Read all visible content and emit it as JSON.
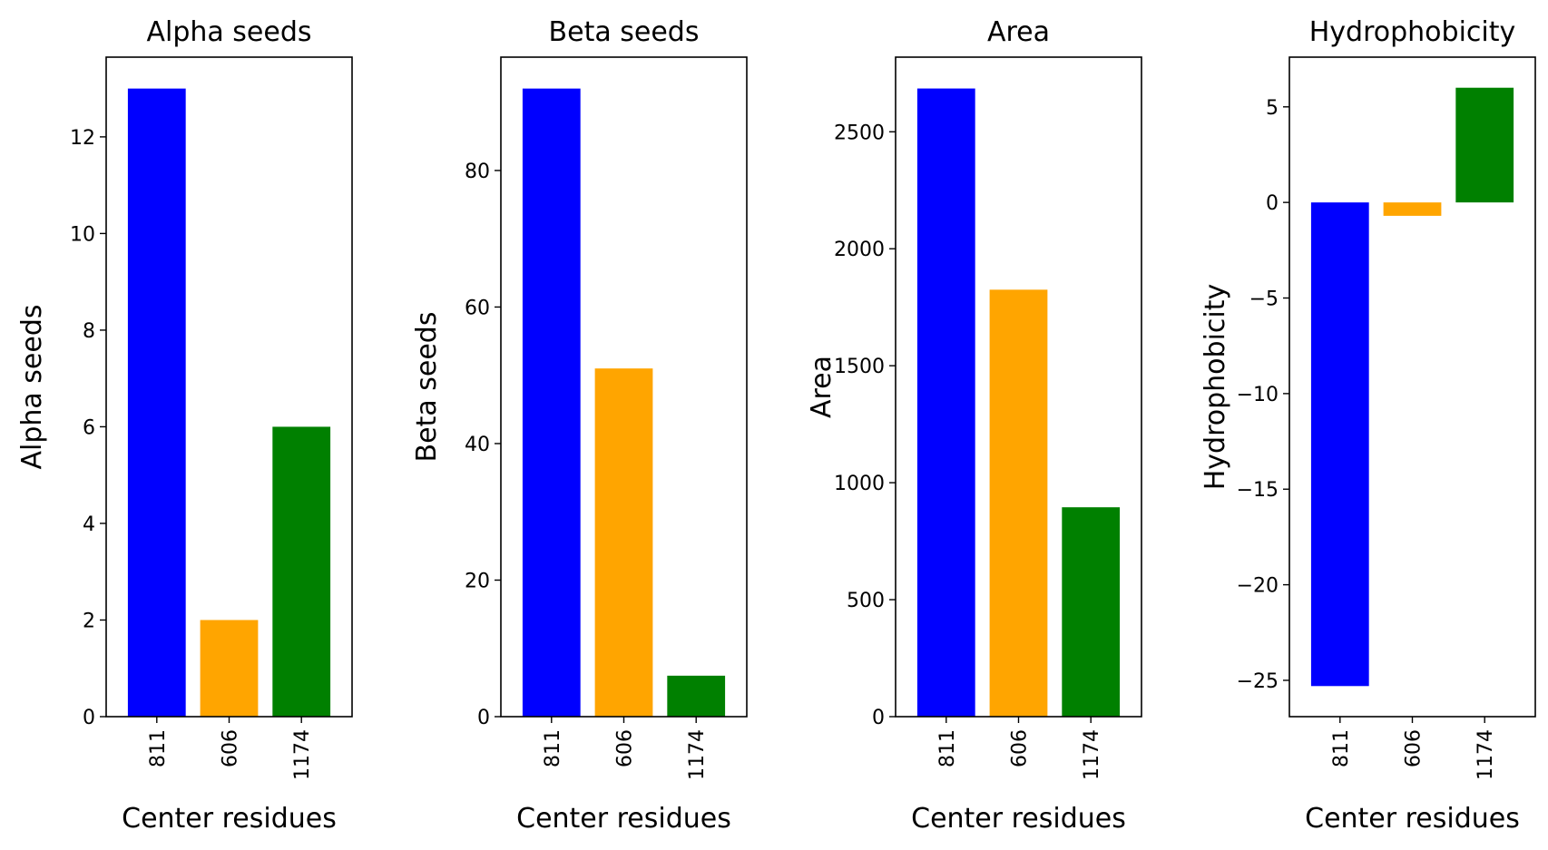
{
  "chart_data": [
    {
      "type": "bar",
      "title": "Alpha seeds",
      "xlabel": "Center residues",
      "ylabel": "Alpha seeds",
      "categories": [
        "811",
        "606",
        "1174"
      ],
      "values": [
        13,
        2,
        6
      ],
      "colors": [
        "#0000ff",
        "#ffa500",
        "#008000"
      ],
      "ylim": [
        0,
        13.65
      ],
      "yticks": [
        0,
        2,
        4,
        6,
        8,
        10,
        12
      ],
      "ytick_labels": [
        "0",
        "2",
        "4",
        "6",
        "8",
        "10",
        "12"
      ]
    },
    {
      "type": "bar",
      "title": "Beta seeds",
      "xlabel": "Center residues",
      "ylabel": "Beta seeds",
      "categories": [
        "811",
        "606",
        "1174"
      ],
      "values": [
        92,
        51,
        6
      ],
      "colors": [
        "#0000ff",
        "#ffa500",
        "#008000"
      ],
      "ylim": [
        0,
        96.6
      ],
      "yticks": [
        0,
        20,
        40,
        60,
        80
      ],
      "ytick_labels": [
        "0",
        "20",
        "40",
        "60",
        "80"
      ]
    },
    {
      "type": "bar",
      "title": "Area",
      "xlabel": "Center residues",
      "ylabel": "Area",
      "categories": [
        "811",
        "606",
        "1174"
      ],
      "values": [
        2685,
        1825,
        895
      ],
      "colors": [
        "#0000ff",
        "#ffa500",
        "#008000"
      ],
      "ylim": [
        0,
        2819
      ],
      "yticks": [
        0,
        500,
        1000,
        1500,
        2000,
        2500
      ],
      "ytick_labels": [
        "0",
        "500",
        "1000",
        "1500",
        "2000",
        "2500"
      ]
    },
    {
      "type": "bar",
      "title": "Hydrophobicity",
      "xlabel": "Center residues",
      "ylabel": "Hydrophobicity",
      "categories": [
        "811",
        "606",
        "1174"
      ],
      "values": [
        -25.3,
        -0.7,
        6.0
      ],
      "colors": [
        "#0000ff",
        "#ffa500",
        "#008000"
      ],
      "ylim": [
        -26.9,
        7.6
      ],
      "yticks": [
        -25,
        -20,
        -15,
        -10,
        -5,
        0,
        5
      ],
      "ytick_labels": [
        "−25",
        "−20",
        "−15",
        "−10",
        "−5",
        "0",
        "5"
      ]
    }
  ]
}
